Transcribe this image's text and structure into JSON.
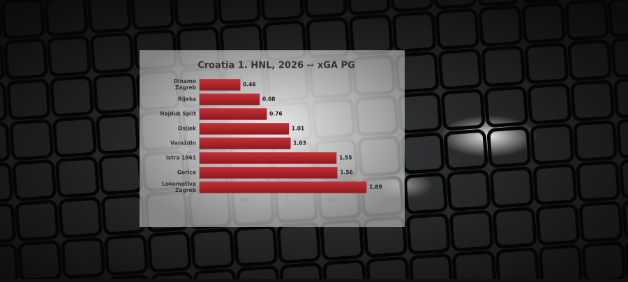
{
  "chart_data": {
    "type": "bar",
    "orientation": "horizontal",
    "title": "Croatia 1. HNL, 2026 -- xGA PG",
    "categories": [
      "Dinamo Zagreb",
      "Rijeka",
      "Hajduk Split",
      "Osijek",
      "Varaždin",
      "Istra 1961",
      "Gorica",
      "Lokomotiva Zagreb"
    ],
    "values": [
      0.46,
      0.68,
      0.76,
      1.01,
      1.03,
      1.55,
      1.56,
      1.89
    ],
    "color": "#b3252b",
    "xlim": [
      0,
      2
    ],
    "xticks": [
      0,
      0.5,
      1,
      1.5
    ]
  }
}
